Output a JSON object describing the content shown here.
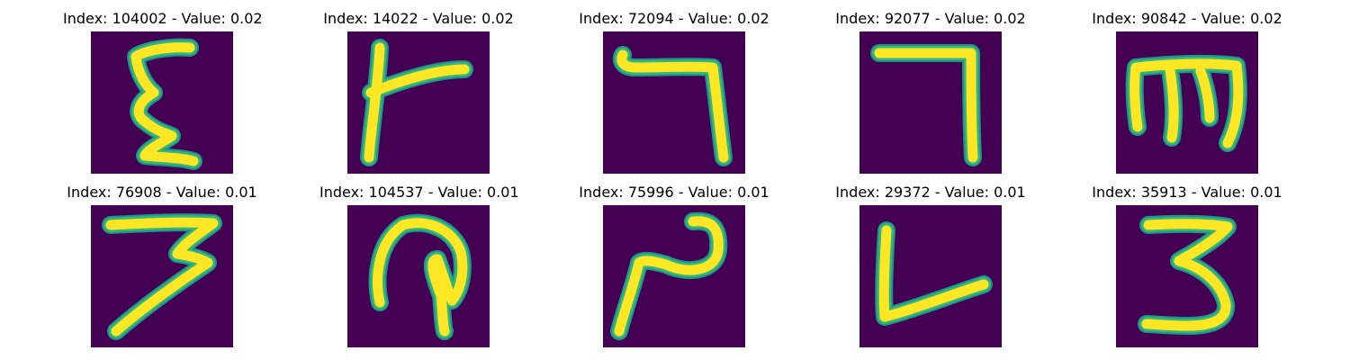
{
  "colors": {
    "background": "#440154",
    "stroke_core": "#fde725",
    "stroke_edge": "#35b779",
    "stroke_halo": "#21918c"
  },
  "samples": [
    {
      "title": "Index: 104002 - Value: 0.02",
      "glyph": "epsilon-like character"
    },
    {
      "title": "Index: 14022 - Value: 0.02",
      "glyph": "vertical stroke with right branch"
    },
    {
      "title": "Index: 72094 - Value: 0.02",
      "glyph": "hook with descending right stroke"
    },
    {
      "title": "Index: 92077 - Value: 0.02",
      "glyph": "inverted L (seven-like)"
    },
    {
      "title": "Index: 90842 - Value: 0.02",
      "glyph": "three-pronged character"
    },
    {
      "title": "Index: 76908 - Value: 0.01",
      "glyph": "three with long diagonal tail"
    },
    {
      "title": "Index: 104537 - Value: 0.01",
      "glyph": "looped arch character"
    },
    {
      "title": "Index: 75996 - Value: 0.01",
      "glyph": "wave with diagonal tail"
    },
    {
      "title": "Index: 29372 - Value: 0.01",
      "glyph": "L with rising base"
    },
    {
      "title": "Index: 35913 - Value: 0.01",
      "glyph": "digit three"
    }
  ]
}
